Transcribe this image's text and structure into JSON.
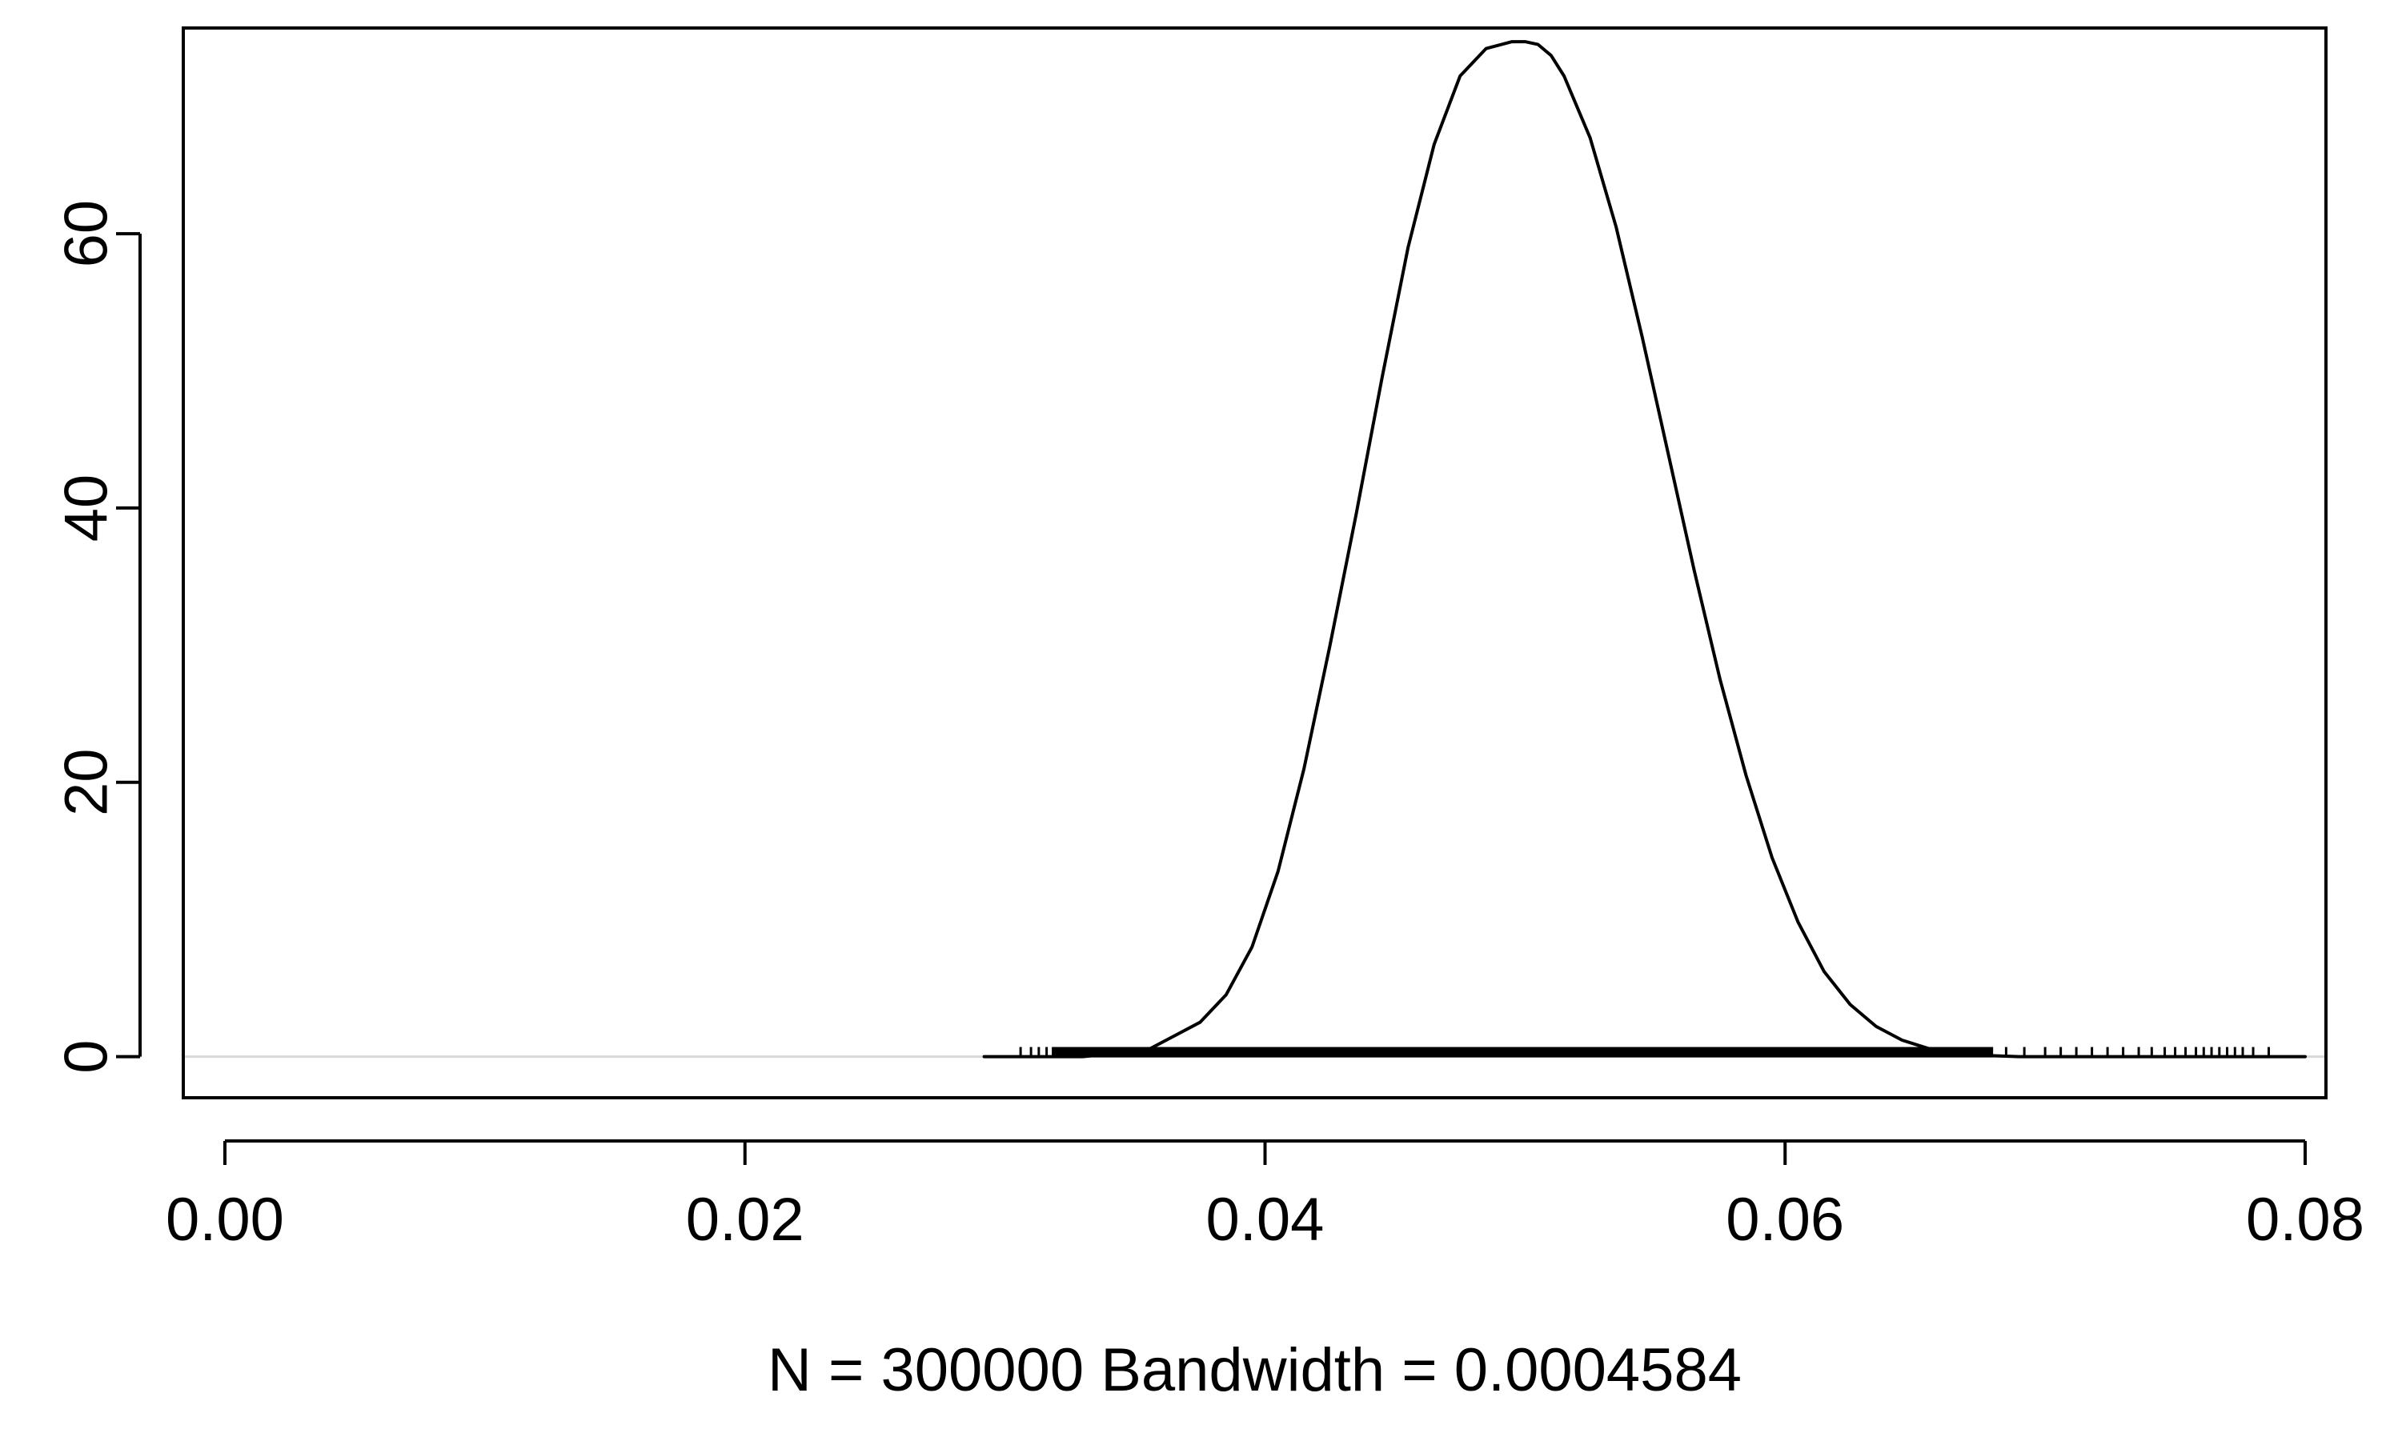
{
  "chart_data": {
    "type": "line",
    "title": "",
    "xlabel": "N = 300000   Bandwidth = 0.0004584",
    "ylabel": "",
    "xlim": [
      -0.0016,
      0.0808
    ],
    "ylim": [
      -3,
      75
    ],
    "x_ticks": [
      0.0,
      0.02,
      0.04,
      0.06,
      0.08
    ],
    "x_tick_labels": [
      "0.00",
      "0.02",
      "0.04",
      "0.06",
      "0.08"
    ],
    "y_ticks": [
      0,
      20,
      40,
      60
    ],
    "y_tick_labels": [
      "0",
      "20",
      "40",
      "60"
    ],
    "grid": false,
    "legend": "none",
    "zero_line_color": "#d9d9d9",
    "line_color": "#000000",
    "series": [
      {
        "x": [
          0.0292,
          0.033,
          0.0355,
          0.0365,
          0.0375,
          0.0385,
          0.0395,
          0.0405,
          0.0415,
          0.0425,
          0.0435,
          0.0445,
          0.0455,
          0.0465,
          0.0475,
          0.0485,
          0.0495,
          0.05,
          0.0505,
          0.051,
          0.0515,
          0.0525,
          0.0535,
          0.0545,
          0.0555,
          0.0565,
          0.0575,
          0.0585,
          0.0595,
          0.0605,
          0.0615,
          0.0625,
          0.0635,
          0.0645,
          0.0655,
          0.0665,
          0.0675,
          0.069,
          0.071,
          0.075,
          0.08
        ],
        "y": [
          0,
          0,
          0.5,
          1.5,
          2.5,
          4.5,
          8,
          13.5,
          21,
          30,
          39.5,
          49.5,
          59,
          66.5,
          71.5,
          73.5,
          74,
          74,
          73.8,
          73,
          71.5,
          67,
          60.5,
          52.5,
          44,
          35.5,
          27.5,
          20.5,
          14.5,
          9.8,
          6.2,
          3.8,
          2.2,
          1.2,
          0.6,
          0.3,
          0.1,
          0,
          0,
          0,
          0
        ]
      }
    ],
    "rug": {
      "dense_range": [
        0.0318,
        0.068
      ],
      "sparse_left": [
        0.0306,
        0.031,
        0.0313,
        0.0316
      ],
      "sparse_right": [
        0.0685,
        0.0692,
        0.07,
        0.0706,
        0.0712,
        0.0718,
        0.0724,
        0.073,
        0.0736,
        0.0741,
        0.0746,
        0.075,
        0.0754,
        0.0758,
        0.0761,
        0.0764,
        0.0767,
        0.077,
        0.0773,
        0.0776,
        0.078,
        0.0786
      ]
    }
  }
}
